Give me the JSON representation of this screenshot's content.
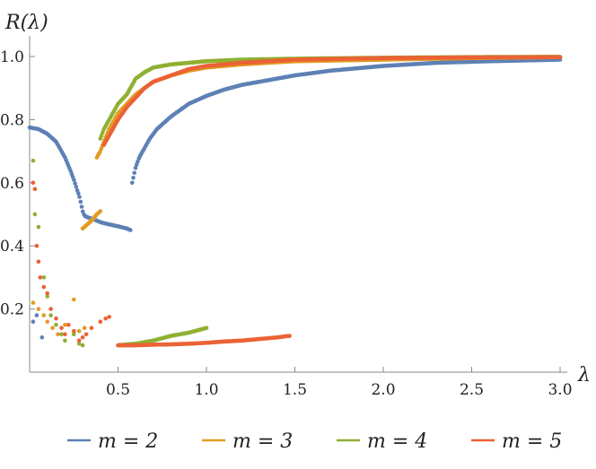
{
  "chart_data": {
    "type": "scatter",
    "title": "",
    "xlabel": "λ",
    "ylabel": "R(λ)",
    "xlim": [
      0,
      3.05
    ],
    "ylim": [
      0,
      1.05
    ],
    "xticks": [
      0.5,
      1.0,
      1.5,
      2.0,
      2.5,
      3.0
    ],
    "xtick_labels": [
      "0.5",
      "1.0",
      "1.5",
      "2.0",
      "2.5",
      "3.0"
    ],
    "yticks": [
      0.2,
      0.4,
      0.6,
      0.8,
      1.0
    ],
    "ytick_labels": [
      "0.2",
      "0.4",
      "0.6",
      "0.8",
      "1.0"
    ],
    "grid": false,
    "legend_position": "bottom",
    "series": [
      {
        "name": "m = 2",
        "color": "#5E81B5",
        "segments": [
          {
            "x": [
              0.0,
              0.05,
              0.1,
              0.15,
              0.2,
              0.23,
              0.25,
              0.27,
              0.28,
              0.29,
              0.3,
              0.31,
              0.33,
              0.36,
              0.4,
              0.45,
              0.5,
              0.55,
              0.57
            ],
            "y": [
              0.775,
              0.77,
              0.755,
              0.73,
              0.68,
              0.64,
              0.61,
              0.575,
              0.56,
              0.535,
              0.51,
              0.495,
              0.49,
              0.485,
              0.475,
              0.468,
              0.462,
              0.455,
              0.45
            ]
          },
          {
            "x": [
              0.58,
              0.6,
              0.62,
              0.65,
              0.68,
              0.72,
              0.76,
              0.8,
              0.85,
              0.9,
              1.0,
              1.1,
              1.2,
              1.3,
              1.5,
              1.7,
              2.0,
              2.3,
              2.6,
              3.0
            ],
            "y": [
              0.6,
              0.65,
              0.68,
              0.71,
              0.74,
              0.77,
              0.79,
              0.81,
              0.83,
              0.85,
              0.875,
              0.895,
              0.91,
              0.92,
              0.94,
              0.955,
              0.97,
              0.98,
              0.985,
              0.99
            ]
          }
        ],
        "scatter": {
          "x": [
            0.02,
            0.04,
            0.07
          ],
          "y": [
            0.16,
            0.18,
            0.11
          ]
        }
      },
      {
        "name": "m = 3",
        "color": "#E19C24",
        "segments": [
          {
            "x": [
              0.3,
              0.32,
              0.35,
              0.38,
              0.4
            ],
            "y": [
              0.455,
              0.465,
              0.48,
              0.5,
              0.51
            ]
          },
          {
            "x": [
              0.38,
              0.4,
              0.42,
              0.45,
              0.48,
              0.5,
              0.55,
              0.6,
              0.65,
              0.7,
              0.8,
              0.9,
              1.0,
              1.2,
              1.5,
              2.0,
              2.5,
              3.0
            ],
            "y": [
              0.68,
              0.7,
              0.73,
              0.77,
              0.8,
              0.82,
              0.85,
              0.88,
              0.9,
              0.92,
              0.94,
              0.955,
              0.965,
              0.975,
              0.985,
              0.99,
              0.995,
              0.998
            ]
          }
        ],
        "scatter": {
          "x": [
            0.02,
            0.05,
            0.08,
            0.1,
            0.13,
            0.16,
            0.2,
            0.25,
            0.28,
            0.31
          ],
          "y": [
            0.22,
            0.2,
            0.18,
            0.16,
            0.14,
            0.12,
            0.15,
            0.23,
            0.13,
            0.14
          ]
        }
      },
      {
        "name": "m = 4",
        "color": "#8FB032",
        "segments": [
          {
            "x": [
              0.4,
              0.42,
              0.45,
              0.48,
              0.5,
              0.55,
              0.6,
              0.65,
              0.7,
              0.8,
              0.9,
              1.0,
              1.2,
              1.5,
              2.0,
              2.5,
              3.0
            ],
            "y": [
              0.74,
              0.77,
              0.8,
              0.83,
              0.85,
              0.88,
              0.93,
              0.95,
              0.965,
              0.975,
              0.98,
              0.985,
              0.99,
              0.993,
              0.996,
              0.998,
              0.999
            ]
          },
          {
            "x": [
              0.5,
              0.55,
              0.6,
              0.7,
              0.8,
              0.9,
              1.0
            ],
            "y": [
              0.085,
              0.088,
              0.09,
              0.1,
              0.115,
              0.125,
              0.14
            ]
          }
        ],
        "scatter": {
          "x": [
            0.02,
            0.03,
            0.05,
            0.08,
            0.1,
            0.12,
            0.15,
            0.18,
            0.2,
            0.25,
            0.28,
            0.3
          ],
          "y": [
            0.67,
            0.5,
            0.46,
            0.3,
            0.24,
            0.18,
            0.15,
            0.12,
            0.1,
            0.12,
            0.09,
            0.085
          ]
        }
      },
      {
        "name": "m = 5",
        "color": "#EB6235",
        "segments": [
          {
            "x": [
              0.42,
              0.45,
              0.48,
              0.5,
              0.55,
              0.6,
              0.65,
              0.7,
              0.8,
              0.85,
              0.9,
              1.0,
              1.2,
              1.5,
              2.0,
              2.5,
              3.0
            ],
            "y": [
              0.72,
              0.75,
              0.78,
              0.8,
              0.84,
              0.87,
              0.9,
              0.92,
              0.94,
              0.95,
              0.96,
              0.97,
              0.98,
              0.99,
              0.995,
              0.997,
              0.998
            ]
          },
          {
            "x": [
              0.5,
              0.6,
              0.7,
              0.8,
              0.9,
              1.0,
              1.1,
              1.2,
              1.3,
              1.4,
              1.47
            ],
            "y": [
              0.085,
              0.085,
              0.087,
              0.088,
              0.09,
              0.093,
              0.097,
              0.1,
              0.105,
              0.11,
              0.115
            ]
          }
        ],
        "scatter": {
          "x": [
            0.02,
            0.03,
            0.04,
            0.05,
            0.06,
            0.08,
            0.1,
            0.12,
            0.15,
            0.18,
            0.2,
            0.22,
            0.25,
            0.28,
            0.3,
            0.32,
            0.35,
            0.4,
            0.43,
            0.45
          ],
          "y": [
            0.6,
            0.58,
            0.4,
            0.35,
            0.3,
            0.27,
            0.25,
            0.2,
            0.17,
            0.14,
            0.12,
            0.15,
            0.13,
            0.1,
            0.11,
            0.12,
            0.14,
            0.16,
            0.17,
            0.175
          ]
        }
      }
    ]
  },
  "legend": {
    "items": [
      {
        "label": "m = 2",
        "color": "#5E81B5"
      },
      {
        "label": "m = 3",
        "color": "#E19C24"
      },
      {
        "label": "m = 4",
        "color": "#8FB032"
      },
      {
        "label": "m = 5",
        "color": "#EB6235"
      }
    ]
  }
}
